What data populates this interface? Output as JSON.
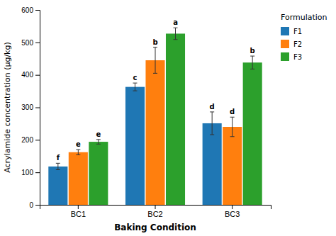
{
  "chart_data": {
    "type": "bar",
    "categories": [
      "BC1",
      "BC2",
      "BC3"
    ],
    "series": [
      {
        "name": "F1",
        "values": [
          118,
          363,
          251
        ],
        "errors": [
          10,
          12,
          35
        ],
        "letters": [
          "f",
          "c",
          "d"
        ]
      },
      {
        "name": "F2",
        "values": [
          162,
          445,
          240
        ],
        "errors": [
          8,
          40,
          30
        ],
        "letters": [
          "e",
          "b",
          "d"
        ]
      },
      {
        "name": "F3",
        "values": [
          194,
          527,
          438
        ],
        "errors": [
          7,
          18,
          20
        ],
        "letters": [
          "e",
          "a",
          "b"
        ]
      }
    ],
    "xlabel": "Baking Condition",
    "ylabel": "Acrylamide concentration (µg/kg)",
    "legend_title": "Formulation",
    "ylim": [
      0,
      600
    ],
    "yticks": [
      0,
      100,
      200,
      300,
      400,
      500,
      600
    ],
    "grid": false,
    "legend": "upper right"
  }
}
